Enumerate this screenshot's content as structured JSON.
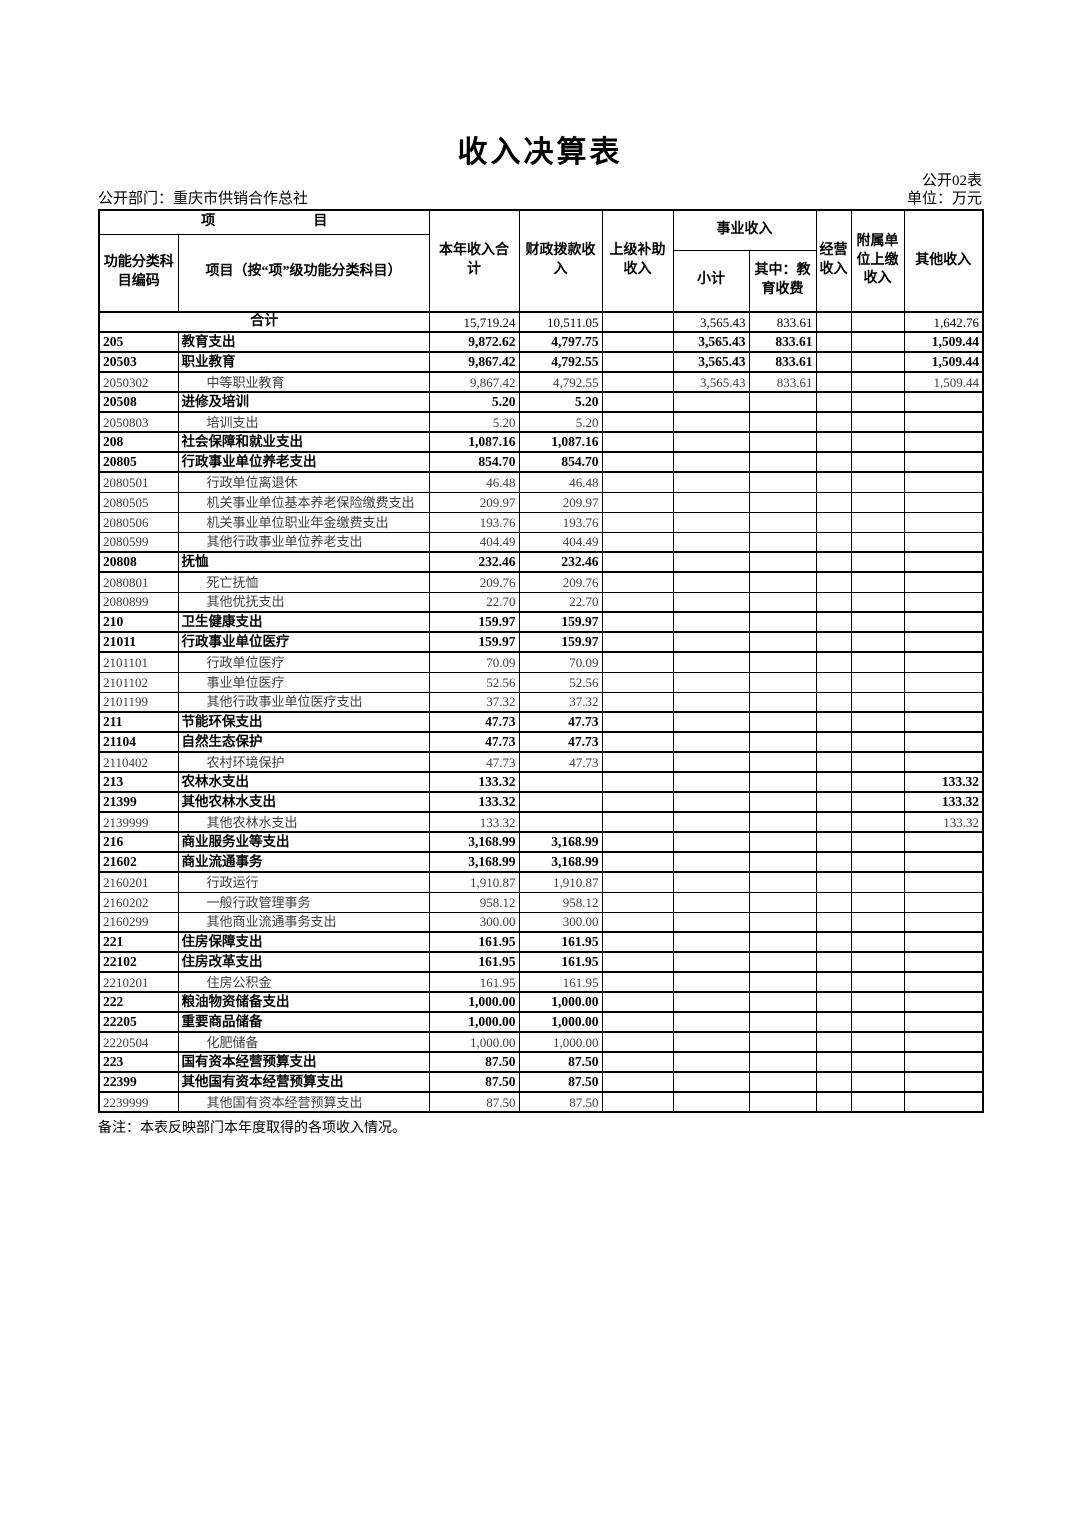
{
  "page": {
    "title": "收入决算表",
    "form_code": "公开02表",
    "department": "公开部门：重庆市供销合作总社",
    "unit": "单位：万元",
    "note": "备注：本表反映部门本年度取得的各项收入情况。"
  },
  "table": {
    "header": {
      "item_group": [
        "项",
        "目"
      ],
      "code": "功能分类科目编码",
      "item": "项目（按“项”级功能分类科目）",
      "total_income": "本年收入合计",
      "fiscal_appropriation": "财政拨款收入",
      "superior_subsidy": "上级补助收入",
      "business_income_group": "事业收入",
      "business_subtotal": "小计",
      "education_fee": "其中：教育收费",
      "operating_income": "经营收入",
      "affiliated_remittance": "附属单位上缴收入",
      "other_income": "其他收入"
    },
    "rows": [
      {
        "code": "",
        "name": "合计",
        "level": "total",
        "values": [
          "15,719.24",
          "10,511.05",
          "",
          "3,565.43",
          "833.61",
          "",
          "",
          "1,642.76"
        ]
      },
      {
        "code": "205",
        "name": "教育支出",
        "level": "class",
        "values": [
          "9,872.62",
          "4,797.75",
          "",
          "3,565.43",
          "833.61",
          "",
          "",
          "1,509.44"
        ]
      },
      {
        "code": "20503",
        "name": "职业教育",
        "level": "class",
        "values": [
          "9,867.42",
          "4,792.55",
          "",
          "3,565.43",
          "833.61",
          "",
          "",
          "1,509.44"
        ]
      },
      {
        "code": "2050302",
        "name": "中等职业教育",
        "level": "detail",
        "values": [
          "9,867.42",
          "4,792.55",
          "",
          "3,565.43",
          "833.61",
          "",
          "",
          "1,509.44"
        ]
      },
      {
        "code": "20508",
        "name": "进修及培训",
        "level": "class",
        "values": [
          "5.20",
          "5.20",
          "",
          "",
          "",
          "",
          "",
          ""
        ]
      },
      {
        "code": "2050803",
        "name": "培训支出",
        "level": "detail",
        "values": [
          "5.20",
          "5.20",
          "",
          "",
          "",
          "",
          "",
          ""
        ]
      },
      {
        "code": "208",
        "name": "社会保障和就业支出",
        "level": "class",
        "values": [
          "1,087.16",
          "1,087.16",
          "",
          "",
          "",
          "",
          "",
          ""
        ]
      },
      {
        "code": "20805",
        "name": "行政事业单位养老支出",
        "level": "class",
        "values": [
          "854.70",
          "854.70",
          "",
          "",
          "",
          "",
          "",
          ""
        ]
      },
      {
        "code": "2080501",
        "name": "行政单位离退休",
        "level": "detail",
        "values": [
          "46.48",
          "46.48",
          "",
          "",
          "",
          "",
          "",
          ""
        ]
      },
      {
        "code": "2080505",
        "name": "机关事业单位基本养老保险缴费支出",
        "level": "detail",
        "values": [
          "209.97",
          "209.97",
          "",
          "",
          "",
          "",
          "",
          ""
        ]
      },
      {
        "code": "2080506",
        "name": "机关事业单位职业年金缴费支出",
        "level": "detail",
        "values": [
          "193.76",
          "193.76",
          "",
          "",
          "",
          "",
          "",
          ""
        ]
      },
      {
        "code": "2080599",
        "name": "其他行政事业单位养老支出",
        "level": "detail",
        "values": [
          "404.49",
          "404.49",
          "",
          "",
          "",
          "",
          "",
          ""
        ]
      },
      {
        "code": "20808",
        "name": "抚恤",
        "level": "class",
        "values": [
          "232.46",
          "232.46",
          "",
          "",
          "",
          "",
          "",
          ""
        ]
      },
      {
        "code": "2080801",
        "name": "死亡抚恤",
        "level": "detail",
        "values": [
          "209.76",
          "209.76",
          "",
          "",
          "",
          "",
          "",
          ""
        ]
      },
      {
        "code": "2080899",
        "name": "其他优抚支出",
        "level": "detail",
        "values": [
          "22.70",
          "22.70",
          "",
          "",
          "",
          "",
          "",
          ""
        ]
      },
      {
        "code": "210",
        "name": "卫生健康支出",
        "level": "class",
        "values": [
          "159.97",
          "159.97",
          "",
          "",
          "",
          "",
          "",
          ""
        ]
      },
      {
        "code": "21011",
        "name": "行政事业单位医疗",
        "level": "class",
        "values": [
          "159.97",
          "159.97",
          "",
          "",
          "",
          "",
          "",
          ""
        ]
      },
      {
        "code": "2101101",
        "name": "行政单位医疗",
        "level": "detail",
        "values": [
          "70.09",
          "70.09",
          "",
          "",
          "",
          "",
          "",
          ""
        ]
      },
      {
        "code": "2101102",
        "name": "事业单位医疗",
        "level": "detail",
        "values": [
          "52.56",
          "52.56",
          "",
          "",
          "",
          "",
          "",
          ""
        ]
      },
      {
        "code": "2101199",
        "name": "其他行政事业单位医疗支出",
        "level": "detail",
        "values": [
          "37.32",
          "37.32",
          "",
          "",
          "",
          "",
          "",
          ""
        ]
      },
      {
        "code": "211",
        "name": "节能环保支出",
        "level": "class",
        "values": [
          "47.73",
          "47.73",
          "",
          "",
          "",
          "",
          "",
          ""
        ]
      },
      {
        "code": "21104",
        "name": "自然生态保护",
        "level": "class",
        "values": [
          "47.73",
          "47.73",
          "",
          "",
          "",
          "",
          "",
          ""
        ]
      },
      {
        "code": "2110402",
        "name": "农村环境保护",
        "level": "detail",
        "values": [
          "47.73",
          "47.73",
          "",
          "",
          "",
          "",
          "",
          ""
        ]
      },
      {
        "code": "213",
        "name": "农林水支出",
        "level": "class",
        "values": [
          "133.32",
          "",
          "",
          "",
          "",
          "",
          "",
          "133.32"
        ]
      },
      {
        "code": "21399",
        "name": "其他农林水支出",
        "level": "class",
        "values": [
          "133.32",
          "",
          "",
          "",
          "",
          "",
          "",
          "133.32"
        ]
      },
      {
        "code": "2139999",
        "name": "其他农林水支出",
        "level": "detail",
        "values": [
          "133.32",
          "",
          "",
          "",
          "",
          "",
          "",
          "133.32"
        ]
      },
      {
        "code": "216",
        "name": "商业服务业等支出",
        "level": "class",
        "values": [
          "3,168.99",
          "3,168.99",
          "",
          "",
          "",
          "",
          "",
          ""
        ]
      },
      {
        "code": "21602",
        "name": "商业流通事务",
        "level": "class",
        "values": [
          "3,168.99",
          "3,168.99",
          "",
          "",
          "",
          "",
          "",
          ""
        ]
      },
      {
        "code": "2160201",
        "name": "行政运行",
        "level": "detail",
        "values": [
          "1,910.87",
          "1,910.87",
          "",
          "",
          "",
          "",
          "",
          ""
        ]
      },
      {
        "code": "2160202",
        "name": "一般行政管理事务",
        "level": "detail",
        "values": [
          "958.12",
          "958.12",
          "",
          "",
          "",
          "",
          "",
          ""
        ]
      },
      {
        "code": "2160299",
        "name": "其他商业流通事务支出",
        "level": "detail",
        "values": [
          "300.00",
          "300.00",
          "",
          "",
          "",
          "",
          "",
          ""
        ]
      },
      {
        "code": "221",
        "name": "住房保障支出",
        "level": "class",
        "values": [
          "161.95",
          "161.95",
          "",
          "",
          "",
          "",
          "",
          ""
        ]
      },
      {
        "code": "22102",
        "name": "住房改革支出",
        "level": "class",
        "values": [
          "161.95",
          "161.95",
          "",
          "",
          "",
          "",
          "",
          ""
        ]
      },
      {
        "code": "2210201",
        "name": "住房公积金",
        "level": "detail",
        "values": [
          "161.95",
          "161.95",
          "",
          "",
          "",
          "",
          "",
          ""
        ]
      },
      {
        "code": "222",
        "name": "粮油物资储备支出",
        "level": "class",
        "values": [
          "1,000.00",
          "1,000.00",
          "",
          "",
          "",
          "",
          "",
          ""
        ]
      },
      {
        "code": "22205",
        "name": "重要商品储备",
        "level": "class",
        "values": [
          "1,000.00",
          "1,000.00",
          "",
          "",
          "",
          "",
          "",
          ""
        ]
      },
      {
        "code": "2220504",
        "name": "化肥储备",
        "level": "detail",
        "values": [
          "1,000.00",
          "1,000.00",
          "",
          "",
          "",
          "",
          "",
          ""
        ]
      },
      {
        "code": "223",
        "name": "国有资本经营预算支出",
        "level": "class",
        "values": [
          "87.50",
          "87.50",
          "",
          "",
          "",
          "",
          "",
          ""
        ]
      },
      {
        "code": "22399",
        "name": "其他国有资本经营预算支出",
        "level": "class",
        "values": [
          "87.50",
          "87.50",
          "",
          "",
          "",
          "",
          "",
          ""
        ]
      },
      {
        "code": "2239999",
        "name": "其他国有资本经营预算支出",
        "level": "detail",
        "values": [
          "87.50",
          "87.50",
          "",
          "",
          "",
          "",
          "",
          ""
        ]
      }
    ]
  }
}
